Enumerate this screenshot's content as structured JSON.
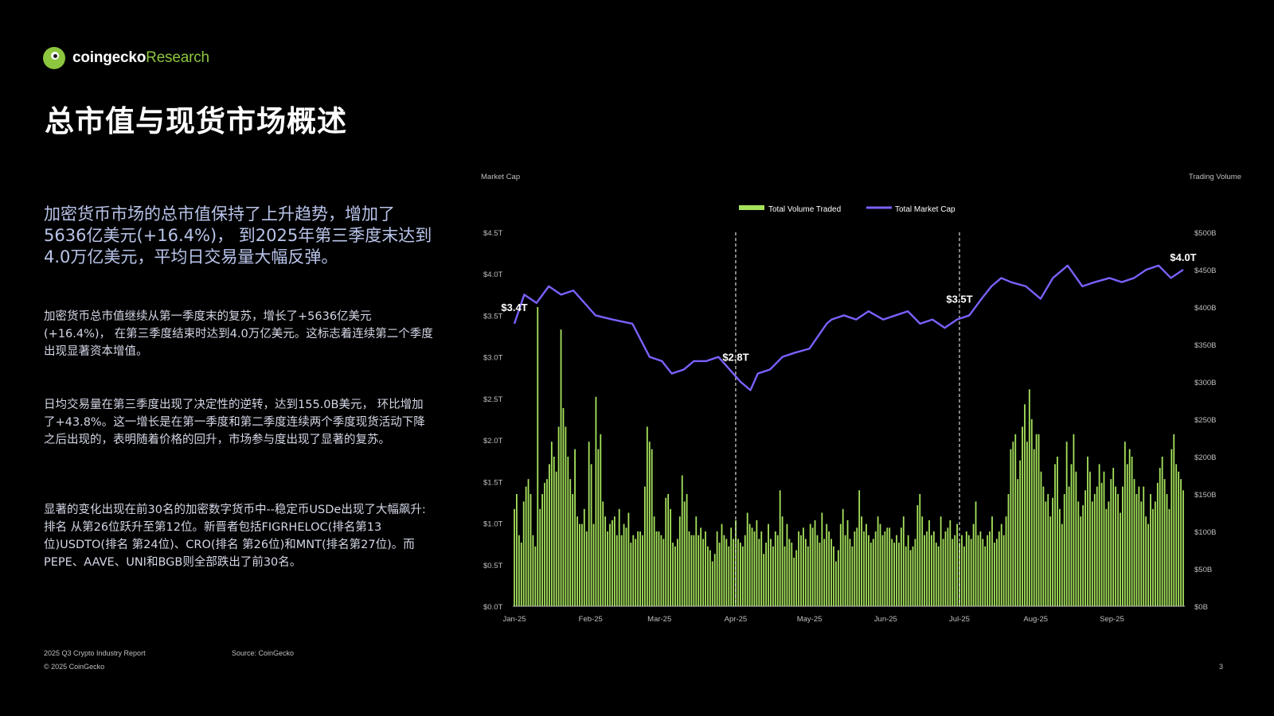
{
  "brand": {
    "name_part1": "coingecko",
    "name_part2": "Research"
  },
  "page_title": "总市值与现货市场概述",
  "lead": "加密货币市场的总市值保持了上升趋势，增加了5636亿美元(+16.4%)， 到2025年第三季度末达到4.0万亿美元，平均日交易量大幅反弹。",
  "paragraphs": [
    "加密货币总市值继续从第一季度末的复苏，增长了+5636亿美元(+16.4%)， 在第三季度结束时达到4.0万亿美元。这标志着连续第二个季度出现显著资本增值。",
    "日均交易量在第三季度出现了决定性的逆转，达到155.0B美元， 环比增加了+43.8%。这一增长是在第一季度和第二季度连续两个季度现货活动下降之后出现的，表明随着价格的回升，市场参与度出现了显著的复苏。",
    "显著的变化出现在前30名的加密数字货币中--稳定币USDe出现了大幅飙升:排名 从第26位跃升至第12位。新晋者包括FIGRHELOC(排名第13位)USDTO(排名 第24位)、CRO(排名 第26位)和MNT(排名第27位)。而PEPE、AAVE、UNI和BGB则全部跌出了前30名。"
  ],
  "footer": {
    "report": "2025 Q3 Crypto Industry Report",
    "source": "Source: CoinGecko",
    "copyright": "© 2025 CoinGecko",
    "page_number": "3"
  },
  "colors": {
    "volume": "#a6e35c",
    "market_cap": "#7b61ff",
    "brand_green": "#8dc63f"
  },
  "chart_data": {
    "type": "bar+line",
    "left_axis_title": "Market Cap",
    "right_axis_title": "Trading Volume",
    "x_tick_labels": [
      "Jan-25",
      "Feb-25",
      "Mar-25",
      "Apr-25",
      "May-25",
      "Jun-25",
      "Jul-25",
      "Aug-25",
      "Sep-25"
    ],
    "x_range": [
      "2025-01-01",
      "2025-09-30"
    ],
    "left_ticks": [
      "$0.0T",
      "$0.5T",
      "$1.0T",
      "$1.5T",
      "$2.0T",
      "$2.5T",
      "$3.0T",
      "$3.5T",
      "$4.0T",
      "$4.5T"
    ],
    "left_range": [
      0,
      4.5
    ],
    "right_ticks": [
      "$0B",
      "$50B",
      "$100B",
      "$150B",
      "$200B",
      "$250B",
      "$300B",
      "$350B",
      "$400B",
      "$450B",
      "$500B"
    ],
    "right_range": [
      0,
      500
    ],
    "legend": [
      "Total Volume Traded",
      "Total Market Cap"
    ],
    "legend_position": "top-center",
    "vertical_markers": [
      "2025-04-01",
      "2025-07-01"
    ],
    "annotations": [
      {
        "text": "$3.4T",
        "date": "2025-01-01",
        "value": 3.4
      },
      {
        "text": "$2.8T",
        "date": "2025-04-01",
        "value": 2.8
      },
      {
        "text": "$3.5T",
        "date": "2025-07-01",
        "value": 3.5
      },
      {
        "text": "$4.0T",
        "date": "2025-09-30",
        "value": 4.0
      }
    ],
    "market_cap_series": {
      "name": "Total Market Cap",
      "dates": [
        "2025-01-01",
        "2025-01-05",
        "2025-01-10",
        "2025-01-15",
        "2025-01-20",
        "2025-01-25",
        "2025-01-31",
        "2025-02-03",
        "2025-02-10",
        "2025-02-18",
        "2025-02-25",
        "2025-03-02",
        "2025-03-06",
        "2025-03-11",
        "2025-03-15",
        "2025-03-20",
        "2025-03-25",
        "2025-03-31",
        "2025-04-03",
        "2025-04-07",
        "2025-04-10",
        "2025-04-15",
        "2025-04-20",
        "2025-04-25",
        "2025-05-01",
        "2025-05-08",
        "2025-05-10",
        "2025-05-15",
        "2025-05-20",
        "2025-05-25",
        "2025-05-31",
        "2025-06-05",
        "2025-06-10",
        "2025-06-15",
        "2025-06-20",
        "2025-06-25",
        "2025-06-30",
        "2025-07-05",
        "2025-07-10",
        "2025-07-14",
        "2025-07-18",
        "2025-07-22",
        "2025-07-28",
        "2025-08-03",
        "2025-08-08",
        "2025-08-14",
        "2025-08-20",
        "2025-08-25",
        "2025-08-31",
        "2025-09-05",
        "2025-09-10",
        "2025-09-15",
        "2025-09-20",
        "2025-09-25",
        "2025-09-30"
      ],
      "values": [
        3.4,
        3.75,
        3.65,
        3.85,
        3.75,
        3.8,
        3.6,
        3.5,
        3.45,
        3.4,
        3.0,
        2.95,
        2.8,
        2.85,
        2.95,
        2.95,
        3.0,
        2.8,
        2.7,
        2.6,
        2.8,
        2.85,
        3.0,
        3.05,
        3.1,
        3.4,
        3.45,
        3.5,
        3.45,
        3.55,
        3.45,
        3.5,
        3.55,
        3.4,
        3.45,
        3.35,
        3.45,
        3.5,
        3.7,
        3.85,
        3.95,
        3.9,
        3.85,
        3.7,
        3.95,
        4.1,
        3.85,
        3.9,
        3.95,
        3.9,
        3.95,
        4.05,
        4.1,
        3.95,
        4.05
      ]
    },
    "volume_series": {
      "name": "Total Volume Traded",
      "start_date": "2025-01-01",
      "end_date": "2025-09-30",
      "values": [
        130,
        150,
        95,
        85,
        140,
        160,
        170,
        150,
        95,
        80,
        400,
        130,
        150,
        165,
        170,
        190,
        220,
        200,
        180,
        240,
        370,
        265,
        240,
        200,
        170,
        150,
        210,
        120,
        110,
        110,
        130,
        100,
        220,
        190,
        110,
        280,
        210,
        230,
        140,
        120,
        100,
        110,
        115,
        120,
        95,
        130,
        95,
        110,
        105,
        125,
        85,
        95,
        90,
        100,
        100,
        95,
        160,
        240,
        220,
        210,
        120,
        100,
        100,
        95,
        90,
        145,
        150,
        130,
        85,
        80,
        90,
        120,
        175,
        140,
        150,
        100,
        95,
        95,
        120,
        95,
        105,
        90,
        100,
        80,
        75,
        60,
        70,
        100,
        85,
        110,
        95,
        90,
        80,
        105,
        90,
        115,
        90,
        85,
        80,
        95,
        125,
        110,
        105,
        100,
        115,
        90,
        100,
        70,
        85,
        110,
        90,
        80,
        100,
        95,
        155,
        120,
        80,
        110,
        90,
        85,
        65,
        75,
        100,
        95,
        105,
        90,
        80,
        110,
        105,
        115,
        95,
        85,
        125,
        90,
        110,
        100,
        90,
        80,
        60,
        75,
        110,
        130,
        95,
        115,
        90,
        80,
        100,
        105,
        155,
        120,
        100,
        110,
        95,
        85,
        90,
        100,
        120,
        110,
        95,
        100,
        105,
        105,
        90,
        85,
        95,
        85,
        105,
        120,
        80,
        95,
        75,
        80,
        90,
        135,
        150,
        120,
        95,
        100,
        115,
        95,
        100,
        85,
        80,
        120,
        90,
        100,
        105,
        115,
        90,
        95,
        110,
        85,
        95,
        80,
        100,
        95,
        90,
        110,
        140,
        95,
        100,
        90,
        80,
        95,
        100,
        120,
        85,
        90,
        100,
        110,
        95,
        120,
        150,
        210,
        220,
        230,
        170,
        195,
        240,
        270,
        220,
        290,
        250,
        210,
        230,
        230,
        180,
        160,
        140,
        150,
        120,
        145,
        190,
        200,
        130,
        110,
        150,
        220,
        160,
        190,
        230,
        180,
        140,
        120,
        135,
        155,
        200,
        180,
        140,
        150,
        160,
        190,
        165,
        180,
        130,
        140,
        170,
        185,
        160,
        150,
        125,
        160,
        220,
        190,
        210,
        200,
        170,
        150,
        160,
        140,
        160,
        120,
        110,
        150,
        130,
        140,
        165,
        185,
        200,
        170,
        150,
        130,
        210,
        230,
        190,
        180,
        170,
        155
      ]
    }
  }
}
